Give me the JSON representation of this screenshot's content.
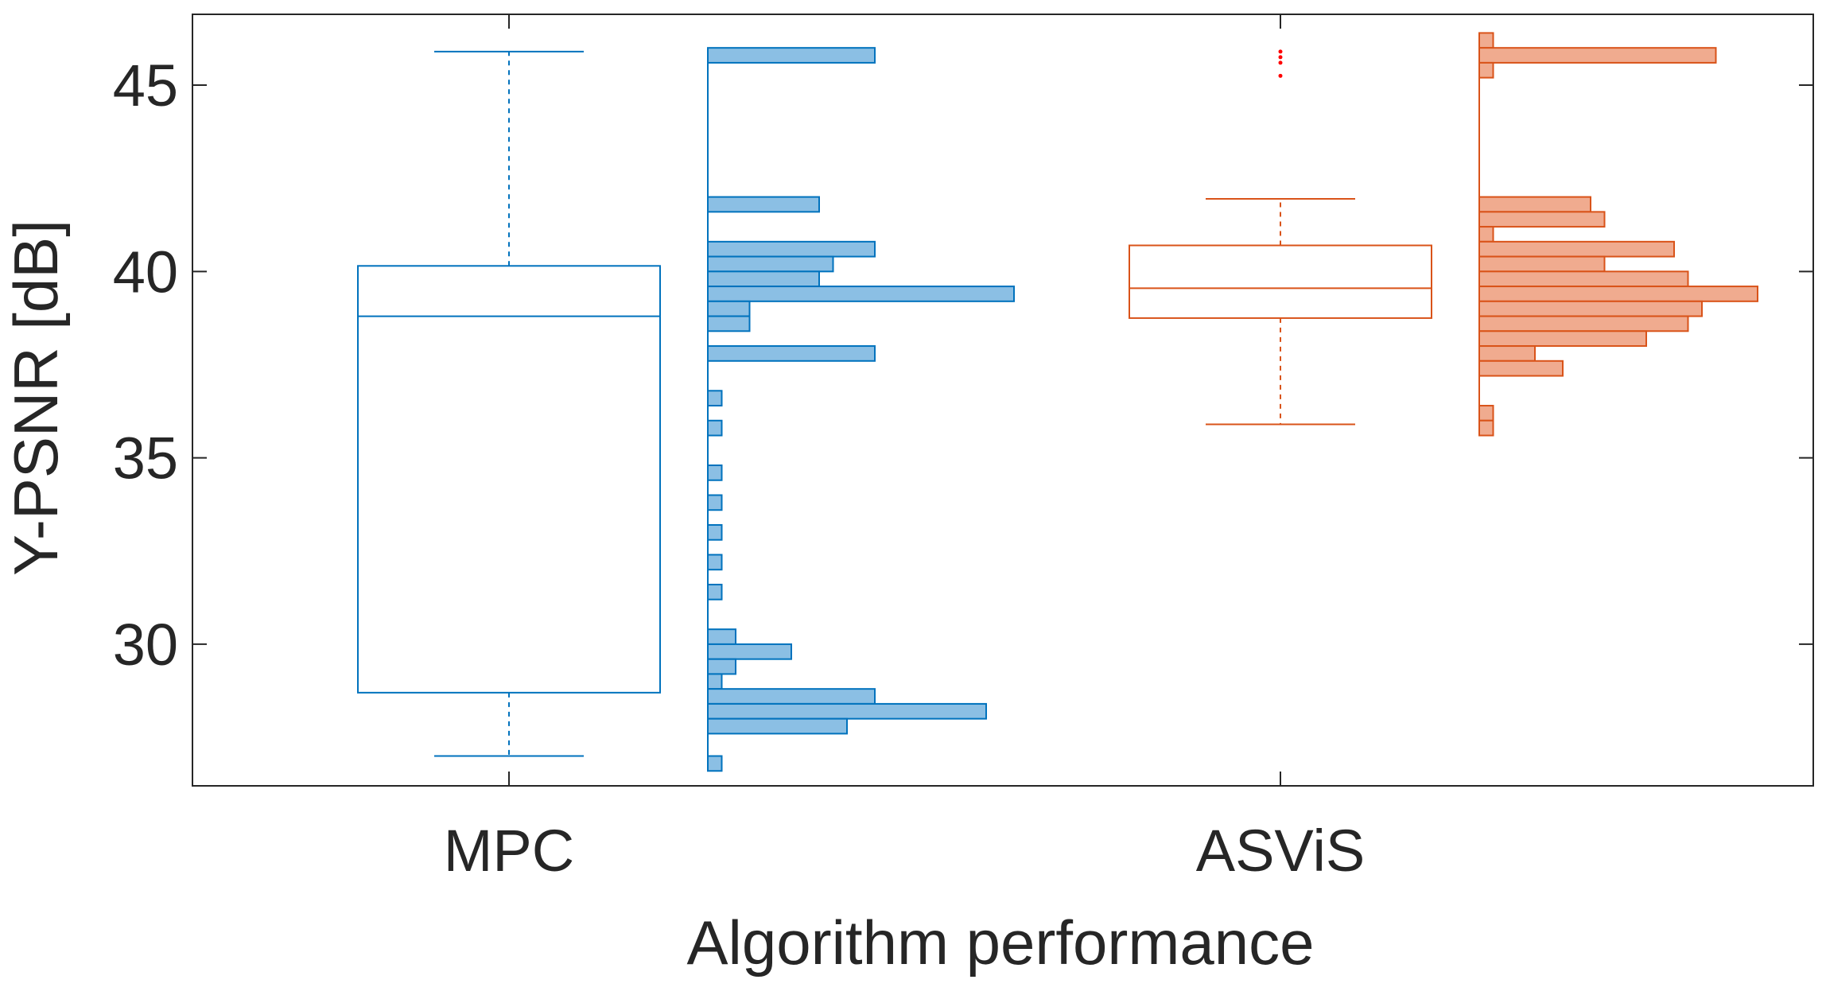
{
  "chart_data": {
    "type": "box",
    "title": "",
    "xlabel": "Algorithm performance",
    "ylabel": "Y-PSNR [dB]",
    "ylim": [
      26.2,
      46.9
    ],
    "yticks": [
      30,
      35,
      40,
      45
    ],
    "grid": false,
    "categories": [
      "MPC",
      "ASViS"
    ],
    "series": [
      {
        "name": "MPC",
        "color": "#0072BD",
        "fill": "#8BBFE4",
        "box": {
          "whisker_low": 27.0,
          "q1": 28.7,
          "median": 38.8,
          "q3": 40.15,
          "whisker_high": 45.9
        },
        "outliers": [],
        "histogram": {
          "bin_width": 0.4,
          "bins": [
            {
              "center": 45.8,
              "value": 6
            },
            {
              "center": 41.8,
              "value": 4
            },
            {
              "center": 40.6,
              "value": 6
            },
            {
              "center": 40.2,
              "value": 4.5
            },
            {
              "center": 39.8,
              "value": 4
            },
            {
              "center": 39.4,
              "value": 11
            },
            {
              "center": 39.0,
              "value": 1.5
            },
            {
              "center": 38.6,
              "value": 1.5
            },
            {
              "center": 37.8,
              "value": 6
            },
            {
              "center": 36.6,
              "value": 0.5
            },
            {
              "center": 35.8,
              "value": 0.5
            },
            {
              "center": 34.6,
              "value": 0.5
            },
            {
              "center": 33.8,
              "value": 0.5
            },
            {
              "center": 33.0,
              "value": 0.5
            },
            {
              "center": 32.2,
              "value": 0.5
            },
            {
              "center": 31.4,
              "value": 0.5
            },
            {
              "center": 30.2,
              "value": 1
            },
            {
              "center": 29.8,
              "value": 3
            },
            {
              "center": 29.4,
              "value": 1
            },
            {
              "center": 29.0,
              "value": 0.5
            },
            {
              "center": 28.6,
              "value": 6
            },
            {
              "center": 28.2,
              "value": 10
            },
            {
              "center": 27.8,
              "value": 5
            },
            {
              "center": 26.8,
              "value": 0.5
            }
          ]
        }
      },
      {
        "name": "ASViS",
        "color": "#D95319",
        "fill": "#F0AB8F",
        "box": {
          "whisker_low": 35.9,
          "q1": 38.75,
          "median": 39.55,
          "q3": 40.7,
          "whisker_high": 41.95
        },
        "outliers": [
          45.9,
          45.75,
          45.6,
          45.25
        ],
        "outlier_color": "#FF0000",
        "histogram": {
          "bin_width": 0.4,
          "bins": [
            {
              "center": 46.2,
              "value": 0.5
            },
            {
              "center": 45.8,
              "value": 8.5
            },
            {
              "center": 45.4,
              "value": 0.5
            },
            {
              "center": 41.8,
              "value": 4
            },
            {
              "center": 41.4,
              "value": 4.5
            },
            {
              "center": 41.0,
              "value": 0.5
            },
            {
              "center": 40.6,
              "value": 7
            },
            {
              "center": 40.2,
              "value": 4.5
            },
            {
              "center": 39.8,
              "value": 7.5
            },
            {
              "center": 39.4,
              "value": 10
            },
            {
              "center": 39.0,
              "value": 8
            },
            {
              "center": 38.6,
              "value": 7.5
            },
            {
              "center": 38.2,
              "value": 6
            },
            {
              "center": 37.8,
              "value": 2
            },
            {
              "center": 37.4,
              "value": 3
            },
            {
              "center": 36.2,
              "value": 0.5
            },
            {
              "center": 35.8,
              "value": 0.5
            }
          ]
        }
      }
    ]
  }
}
